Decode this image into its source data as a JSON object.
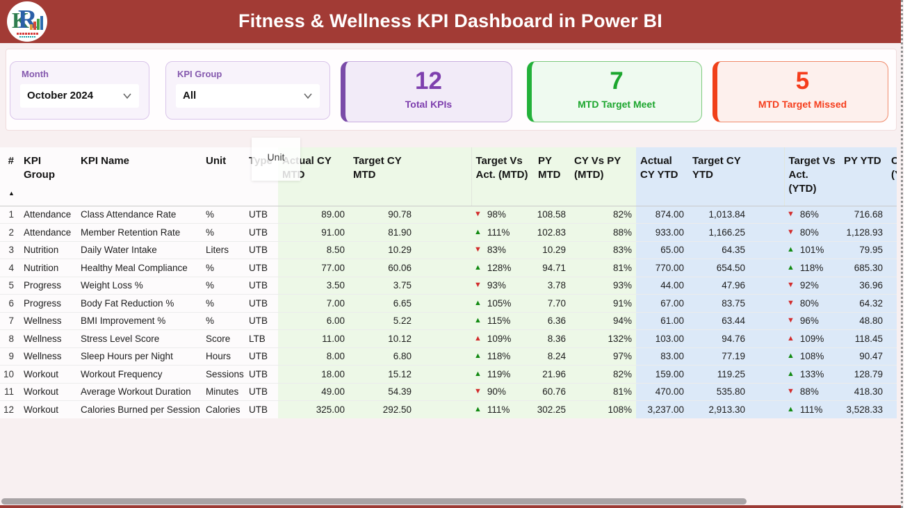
{
  "header": {
    "title": "Fitness & Wellness KPI Dashboard in Power BI"
  },
  "colors": {
    "banner": "#a23b35",
    "accent_purple": "#7e3fae",
    "accent_green": "#1ca62e",
    "accent_red": "#f53d1c",
    "mtd_bg": "#edf8e7",
    "ytd_bg": "#dce9f8",
    "kpi_up_good": "#128a12",
    "kpi_down_bad": "#d22c2c"
  },
  "icons": {
    "up": "▲",
    "down": "▼",
    "sort_asc": "▲",
    "chevron": "chevron-down"
  },
  "filters": {
    "month": {
      "label": "Month",
      "value": "October 2024"
    },
    "kpi_group": {
      "label": "KPI Group",
      "value": "All"
    }
  },
  "cards": [
    {
      "value": "12",
      "label": "Total KPIs"
    },
    {
      "value": "7",
      "label": "MTD Target Meet"
    },
    {
      "value": "5",
      "label": "MTD Target Missed"
    }
  ],
  "tooltip": {
    "text": "Unit"
  },
  "table": {
    "columns": [
      "#",
      "KPI Group",
      "KPI Name",
      "Unit",
      "Type",
      "Actual CY MTD",
      "Target CY MTD",
      "Target Vs Act. (MTD)",
      "PY MTD",
      "CY Vs PY (MTD)",
      "Actual CY YTD",
      "Target CY YTD",
      "Target Vs Act. (YTD)",
      "PY YTD",
      "CY Vs PY (YTD)"
    ],
    "rows": [
      {
        "num": "1",
        "group": "Attendance",
        "name": "Class Attendance Rate",
        "unit": "%",
        "type": "UTB",
        "actual_mtd": "89.00",
        "target_mtd": "90.78",
        "tva_mtd": {
          "dir": "down",
          "tone": "bad",
          "value": "98%"
        },
        "py_mtd": "108.58",
        "cyvspy_mtd": "82%",
        "actual_ytd": "874.00",
        "target_ytd": "1,013.84",
        "tva_ytd": {
          "dir": "down",
          "tone": "bad",
          "value": "86%"
        },
        "py_ytd": "716.68",
        "cyvspy_ytd": ""
      },
      {
        "num": "2",
        "group": "Attendance",
        "name": "Member Retention Rate",
        "unit": "%",
        "type": "UTB",
        "actual_mtd": "91.00",
        "target_mtd": "81.90",
        "tva_mtd": {
          "dir": "up",
          "tone": "good",
          "value": "111%"
        },
        "py_mtd": "102.83",
        "cyvspy_mtd": "88%",
        "actual_ytd": "933.00",
        "target_ytd": "1,166.25",
        "tva_ytd": {
          "dir": "down",
          "tone": "bad",
          "value": "80%"
        },
        "py_ytd": "1,128.93",
        "cyvspy_ytd": ""
      },
      {
        "num": "3",
        "group": "Nutrition",
        "name": "Daily Water Intake",
        "unit": "Liters",
        "type": "UTB",
        "actual_mtd": "8.50",
        "target_mtd": "10.29",
        "tva_mtd": {
          "dir": "down",
          "tone": "bad",
          "value": "83%"
        },
        "py_mtd": "10.29",
        "cyvspy_mtd": "83%",
        "actual_ytd": "65.00",
        "target_ytd": "64.35",
        "tva_ytd": {
          "dir": "up",
          "tone": "good",
          "value": "101%"
        },
        "py_ytd": "79.95",
        "cyvspy_ytd": ""
      },
      {
        "num": "4",
        "group": "Nutrition",
        "name": "Healthy Meal Compliance",
        "unit": "%",
        "type": "UTB",
        "actual_mtd": "77.00",
        "target_mtd": "60.06",
        "tva_mtd": {
          "dir": "up",
          "tone": "good",
          "value": "128%"
        },
        "py_mtd": "94.71",
        "cyvspy_mtd": "81%",
        "actual_ytd": "770.00",
        "target_ytd": "654.50",
        "tva_ytd": {
          "dir": "up",
          "tone": "good",
          "value": "118%"
        },
        "py_ytd": "685.30",
        "cyvspy_ytd": ""
      },
      {
        "num": "5",
        "group": "Progress",
        "name": "Weight Loss %",
        "unit": "%",
        "type": "UTB",
        "actual_mtd": "3.50",
        "target_mtd": "3.75",
        "tva_mtd": {
          "dir": "down",
          "tone": "bad",
          "value": "93%"
        },
        "py_mtd": "3.78",
        "cyvspy_mtd": "93%",
        "actual_ytd": "44.00",
        "target_ytd": "47.96",
        "tva_ytd": {
          "dir": "down",
          "tone": "bad",
          "value": "92%"
        },
        "py_ytd": "36.96",
        "cyvspy_ytd": ""
      },
      {
        "num": "6",
        "group": "Progress",
        "name": "Body Fat Reduction %",
        "unit": "%",
        "type": "UTB",
        "actual_mtd": "7.00",
        "target_mtd": "6.65",
        "tva_mtd": {
          "dir": "up",
          "tone": "good",
          "value": "105%"
        },
        "py_mtd": "7.70",
        "cyvspy_mtd": "91%",
        "actual_ytd": "67.00",
        "target_ytd": "83.75",
        "tva_ytd": {
          "dir": "down",
          "tone": "bad",
          "value": "80%"
        },
        "py_ytd": "64.32",
        "cyvspy_ytd": ""
      },
      {
        "num": "7",
        "group": "Wellness",
        "name": "BMI Improvement %",
        "unit": "%",
        "type": "UTB",
        "actual_mtd": "6.00",
        "target_mtd": "5.22",
        "tva_mtd": {
          "dir": "up",
          "tone": "good",
          "value": "115%"
        },
        "py_mtd": "6.36",
        "cyvspy_mtd": "94%",
        "actual_ytd": "61.00",
        "target_ytd": "63.44",
        "tva_ytd": {
          "dir": "down",
          "tone": "bad",
          "value": "96%"
        },
        "py_ytd": "48.80",
        "cyvspy_ytd": ""
      },
      {
        "num": "8",
        "group": "Wellness",
        "name": "Stress Level Score",
        "unit": "Score",
        "type": "LTB",
        "actual_mtd": "11.00",
        "target_mtd": "10.12",
        "tva_mtd": {
          "dir": "up",
          "tone": "bad",
          "value": "109%"
        },
        "py_mtd": "8.36",
        "cyvspy_mtd": "132%",
        "actual_ytd": "103.00",
        "target_ytd": "94.76",
        "tva_ytd": {
          "dir": "up",
          "tone": "bad",
          "value": "109%"
        },
        "py_ytd": "118.45",
        "cyvspy_ytd": ""
      },
      {
        "num": "9",
        "group": "Wellness",
        "name": "Sleep Hours per Night",
        "unit": "Hours",
        "type": "UTB",
        "actual_mtd": "8.00",
        "target_mtd": "6.80",
        "tva_mtd": {
          "dir": "up",
          "tone": "good",
          "value": "118%"
        },
        "py_mtd": "8.24",
        "cyvspy_mtd": "97%",
        "actual_ytd": "83.00",
        "target_ytd": "77.19",
        "tva_ytd": {
          "dir": "up",
          "tone": "good",
          "value": "108%"
        },
        "py_ytd": "90.47",
        "cyvspy_ytd": ""
      },
      {
        "num": "10",
        "group": "Workout",
        "name": "Workout Frequency",
        "unit": "Sessions",
        "type": "UTB",
        "actual_mtd": "18.00",
        "target_mtd": "15.12",
        "tva_mtd": {
          "dir": "up",
          "tone": "good",
          "value": "119%"
        },
        "py_mtd": "21.96",
        "cyvspy_mtd": "82%",
        "actual_ytd": "159.00",
        "target_ytd": "119.25",
        "tva_ytd": {
          "dir": "up",
          "tone": "good",
          "value": "133%"
        },
        "py_ytd": "128.79",
        "cyvspy_ytd": ""
      },
      {
        "num": "11",
        "group": "Workout",
        "name": "Average Workout Duration",
        "unit": "Minutes",
        "type": "UTB",
        "actual_mtd": "49.00",
        "target_mtd": "54.39",
        "tva_mtd": {
          "dir": "down",
          "tone": "bad",
          "value": "90%"
        },
        "py_mtd": "60.76",
        "cyvspy_mtd": "81%",
        "actual_ytd": "470.00",
        "target_ytd": "535.80",
        "tva_ytd": {
          "dir": "down",
          "tone": "bad",
          "value": "88%"
        },
        "py_ytd": "418.30",
        "cyvspy_ytd": ""
      },
      {
        "num": "12",
        "group": "Workout",
        "name": "Calories Burned per Session",
        "unit": "Calories",
        "type": "UTB",
        "actual_mtd": "325.00",
        "target_mtd": "292.50",
        "tva_mtd": {
          "dir": "up",
          "tone": "good",
          "value": "111%"
        },
        "py_mtd": "302.25",
        "cyvspy_mtd": "108%",
        "actual_ytd": "3,237.00",
        "target_ytd": "2,913.30",
        "tva_ytd": {
          "dir": "up",
          "tone": "good",
          "value": "111%"
        },
        "py_ytd": "3,528.33",
        "cyvspy_ytd": ""
      }
    ]
  }
}
